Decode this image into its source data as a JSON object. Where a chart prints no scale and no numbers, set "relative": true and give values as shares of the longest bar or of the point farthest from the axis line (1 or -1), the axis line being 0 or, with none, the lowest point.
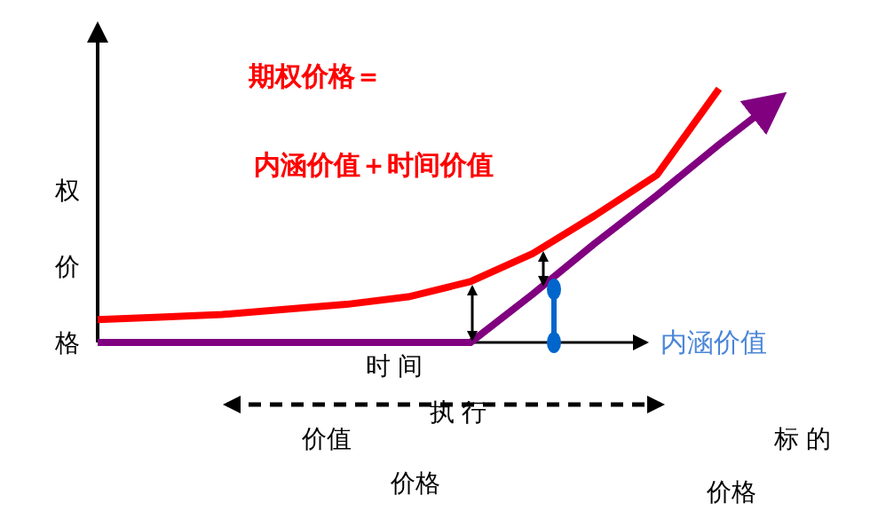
{
  "chart_data": {
    "type": "line",
    "relative": true,
    "ylabel": "权价格",
    "xlabel": "标 的",
    "categories": [
      null,
      null,
      null,
      null,
      null,
      null,
      null,
      null,
      null,
      null,
      null,
      null
    ],
    "series": [
      {
        "color": "#ff0000",
        "values": [
          0.09,
          0.1,
          0.11,
          0.13,
          0.15,
          0.18,
          0.24,
          0.35,
          0.5,
          0.66,
          1,
          null
        ]
      },
      {
        "color": "#800080",
        "values": [
          0,
          0,
          0,
          0,
          0,
          0,
          0,
          0.19,
          0.39,
          0.58,
          0.78,
          0.97
        ]
      }
    ],
    "annotations": [
      "期权价格＝",
      "内涵价值＋时间价值",
      "内涵价值",
      "时 间",
      "执 行",
      "价值",
      "价格",
      "价格"
    ]
  }
}
